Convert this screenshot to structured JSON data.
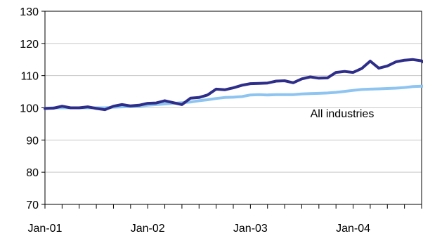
{
  "chart_data": {
    "type": "line",
    "title": "",
    "xlabel": "",
    "ylabel": "",
    "ylim": [
      70,
      130
    ],
    "yticks": [
      70,
      80,
      90,
      100,
      110,
      120,
      130
    ],
    "y_tick_labels": [
      "70",
      "80",
      "90",
      "100",
      "110",
      "120",
      "130"
    ],
    "x_tick_labels": [
      "Jan-01",
      "Jan-02",
      "Jan-03",
      "Jan-04"
    ],
    "x_tick_label_months": [
      0,
      12,
      24,
      36
    ],
    "x_range_months": [
      0,
      44
    ],
    "minor_tick_every_months": 2,
    "grid": "horizontal",
    "legend": "none",
    "annotations": [
      {
        "text": "All industries",
        "at_month": 31,
        "at_value": 97.1
      }
    ],
    "series": [
      {
        "color": "#2E2E8A",
        "values": [
          99.8,
          99.9,
          100.5,
          100.0,
          100.0,
          100.3,
          99.8,
          99.4,
          100.5,
          101.0,
          100.6,
          100.8,
          101.4,
          101.5,
          102.2,
          101.6,
          101.0,
          103.0,
          103.2,
          104.0,
          105.8,
          105.6,
          106.2,
          107.0,
          107.5,
          107.6,
          107.7,
          108.3,
          108.4,
          107.8,
          109.0,
          109.6,
          109.2,
          109.3,
          111.0,
          111.3,
          111.0,
          112.2,
          114.5,
          112.3,
          113.0,
          114.3,
          114.8,
          115.0,
          114.6,
          112.8,
          113.8,
          113.9
        ]
      },
      {
        "color": "#8EC4F0",
        "values": [
          99.8,
          100.0,
          100.0,
          100.0,
          100.0,
          100.0,
          100.0,
          100.0,
          100.2,
          100.3,
          100.4,
          100.5,
          100.8,
          101.0,
          101.2,
          101.4,
          101.6,
          101.8,
          102.2,
          102.5,
          102.9,
          103.2,
          103.3,
          103.5,
          104.0,
          104.1,
          104.0,
          104.1,
          104.1,
          104.1,
          104.3,
          104.4,
          104.5,
          104.6,
          104.8,
          105.1,
          105.4,
          105.7,
          105.8,
          105.9,
          106.0,
          106.1,
          106.3,
          106.6,
          106.7,
          106.8,
          106.8,
          106.8
        ]
      }
    ]
  }
}
